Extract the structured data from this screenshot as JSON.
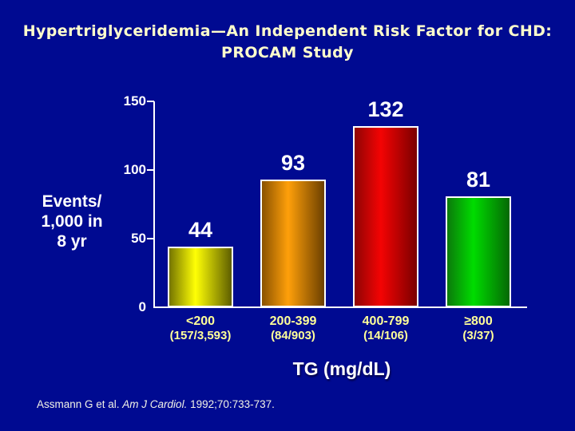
{
  "title": {
    "line1": "Hypertriglyceridemia—An Independent Risk Factor for CHD:",
    "line2": "PROCAM Study"
  },
  "y_axis": {
    "label_line1": "Events/",
    "label_line2": "1,000 in",
    "label_line3": "8 yr"
  },
  "x_axis": {
    "title": "TG (mg/dL)"
  },
  "citation": {
    "prefix": "Assmann G et al. ",
    "journal": "Am J Cardiol.",
    "rest": " 1992;70:733-737."
  },
  "colors": {
    "background": "#000A91",
    "title_text": "#FFFFCC",
    "axis_and_values_text": "#FFFFFF",
    "category_text": "#FFFF99",
    "bar_border": "#FFFFFF"
  },
  "chart_data": {
    "type": "bar",
    "title": "Hypertriglyceridemia—An Independent Risk Factor for CHD: PROCAM Study",
    "categories": [
      "<200",
      "200-399",
      "400-799",
      "≥800"
    ],
    "category_sublabels": [
      "(157/3,593)",
      "(84/903)",
      "(14/106)",
      "(3/37)"
    ],
    "values": [
      44,
      93,
      132,
      81
    ],
    "value_labels": [
      "44",
      "93",
      "132",
      "81"
    ],
    "bar_styles": [
      {
        "name": "yellow",
        "edge": "#757500",
        "mid": "#FFFF05",
        "edge2": "#5E5E00"
      },
      {
        "name": "orange",
        "edge": "#8A5200",
        "mid": "#FFA00A",
        "edge2": "#6B3F00"
      },
      {
        "name": "red",
        "edge": "#8F0505",
        "mid": "#F40303",
        "edge2": "#7A0000"
      },
      {
        "name": "green",
        "edge": "#0B7A0B",
        "mid": "#00DC00",
        "edge2": "#056805"
      }
    ],
    "xlabel": "TG (mg/dL)",
    "ylabel": "Events/1,000 in 8 yr",
    "ylim": [
      0,
      150
    ],
    "yticks": [
      150,
      100,
      50,
      0
    ],
    "grid": false,
    "legend": false
  }
}
